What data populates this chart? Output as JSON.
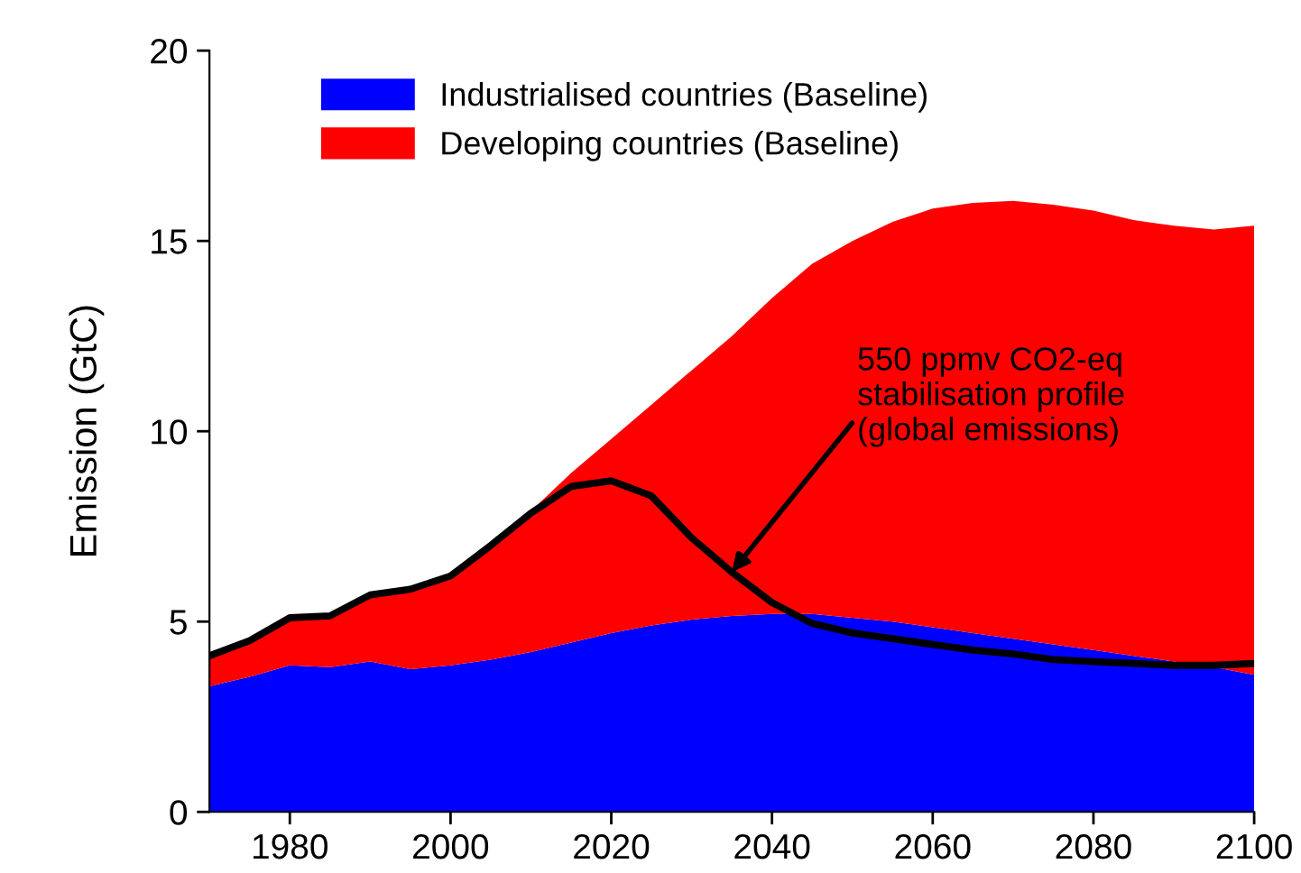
{
  "chart_data": {
    "type": "area",
    "stacked": true,
    "ylabel": "Emission (GtC)",
    "x": [
      1970,
      1975,
      1980,
      1985,
      1990,
      1995,
      2000,
      2005,
      2010,
      2015,
      2020,
      2025,
      2030,
      2035,
      2040,
      2045,
      2050,
      2055,
      2060,
      2065,
      2070,
      2075,
      2080,
      2085,
      2090,
      2095,
      2100
    ],
    "series": [
      {
        "name": "Industrialised countries (Baseline)",
        "color": "#0000ff",
        "values": [
          3.3,
          3.55,
          3.85,
          3.8,
          3.95,
          3.75,
          3.85,
          4.0,
          4.2,
          4.45,
          4.7,
          4.9,
          5.05,
          5.15,
          5.2,
          5.2,
          5.1,
          5.0,
          4.85,
          4.7,
          4.55,
          4.4,
          4.25,
          4.1,
          3.95,
          3.8,
          3.6
        ]
      },
      {
        "name": "Developing countries (Baseline)",
        "color": "#ff0000",
        "values": [
          0.8,
          0.95,
          1.25,
          1.35,
          1.75,
          2.1,
          2.35,
          3.0,
          3.7,
          4.45,
          5.1,
          5.8,
          6.55,
          7.35,
          8.3,
          9.2,
          9.9,
          10.5,
          11.0,
          11.3,
          11.5,
          11.55,
          11.55,
          11.45,
          11.45,
          11.5,
          11.8
        ]
      },
      {
        "type": "line",
        "color": "#000000",
        "values": [
          4.1,
          4.5,
          5.1,
          5.15,
          5.7,
          5.85,
          6.2,
          7.0,
          7.85,
          8.55,
          8.7,
          8.3,
          7.2,
          6.3,
          5.5,
          4.95,
          4.7,
          4.55,
          4.4,
          4.25,
          4.15,
          4.0,
          3.95,
          3.9,
          3.85,
          3.85,
          3.9
        ]
      }
    ],
    "xlim": [
      1970,
      2100
    ],
    "xticks": [
      1980,
      2000,
      2020,
      2040,
      2060,
      2080,
      2100
    ],
    "ylim": [
      0,
      20
    ],
    "yticks": [
      0,
      5,
      10,
      15,
      20
    ],
    "grid": false,
    "legend": "top left",
    "marker": "none",
    "line_style": "solid",
    "annotations": [
      {
        "text": "550 ppmv CO2-eq\nstabilisation profile\n(global emissions)",
        "x": 2035,
        "y": 6.3
      }
    ]
  }
}
